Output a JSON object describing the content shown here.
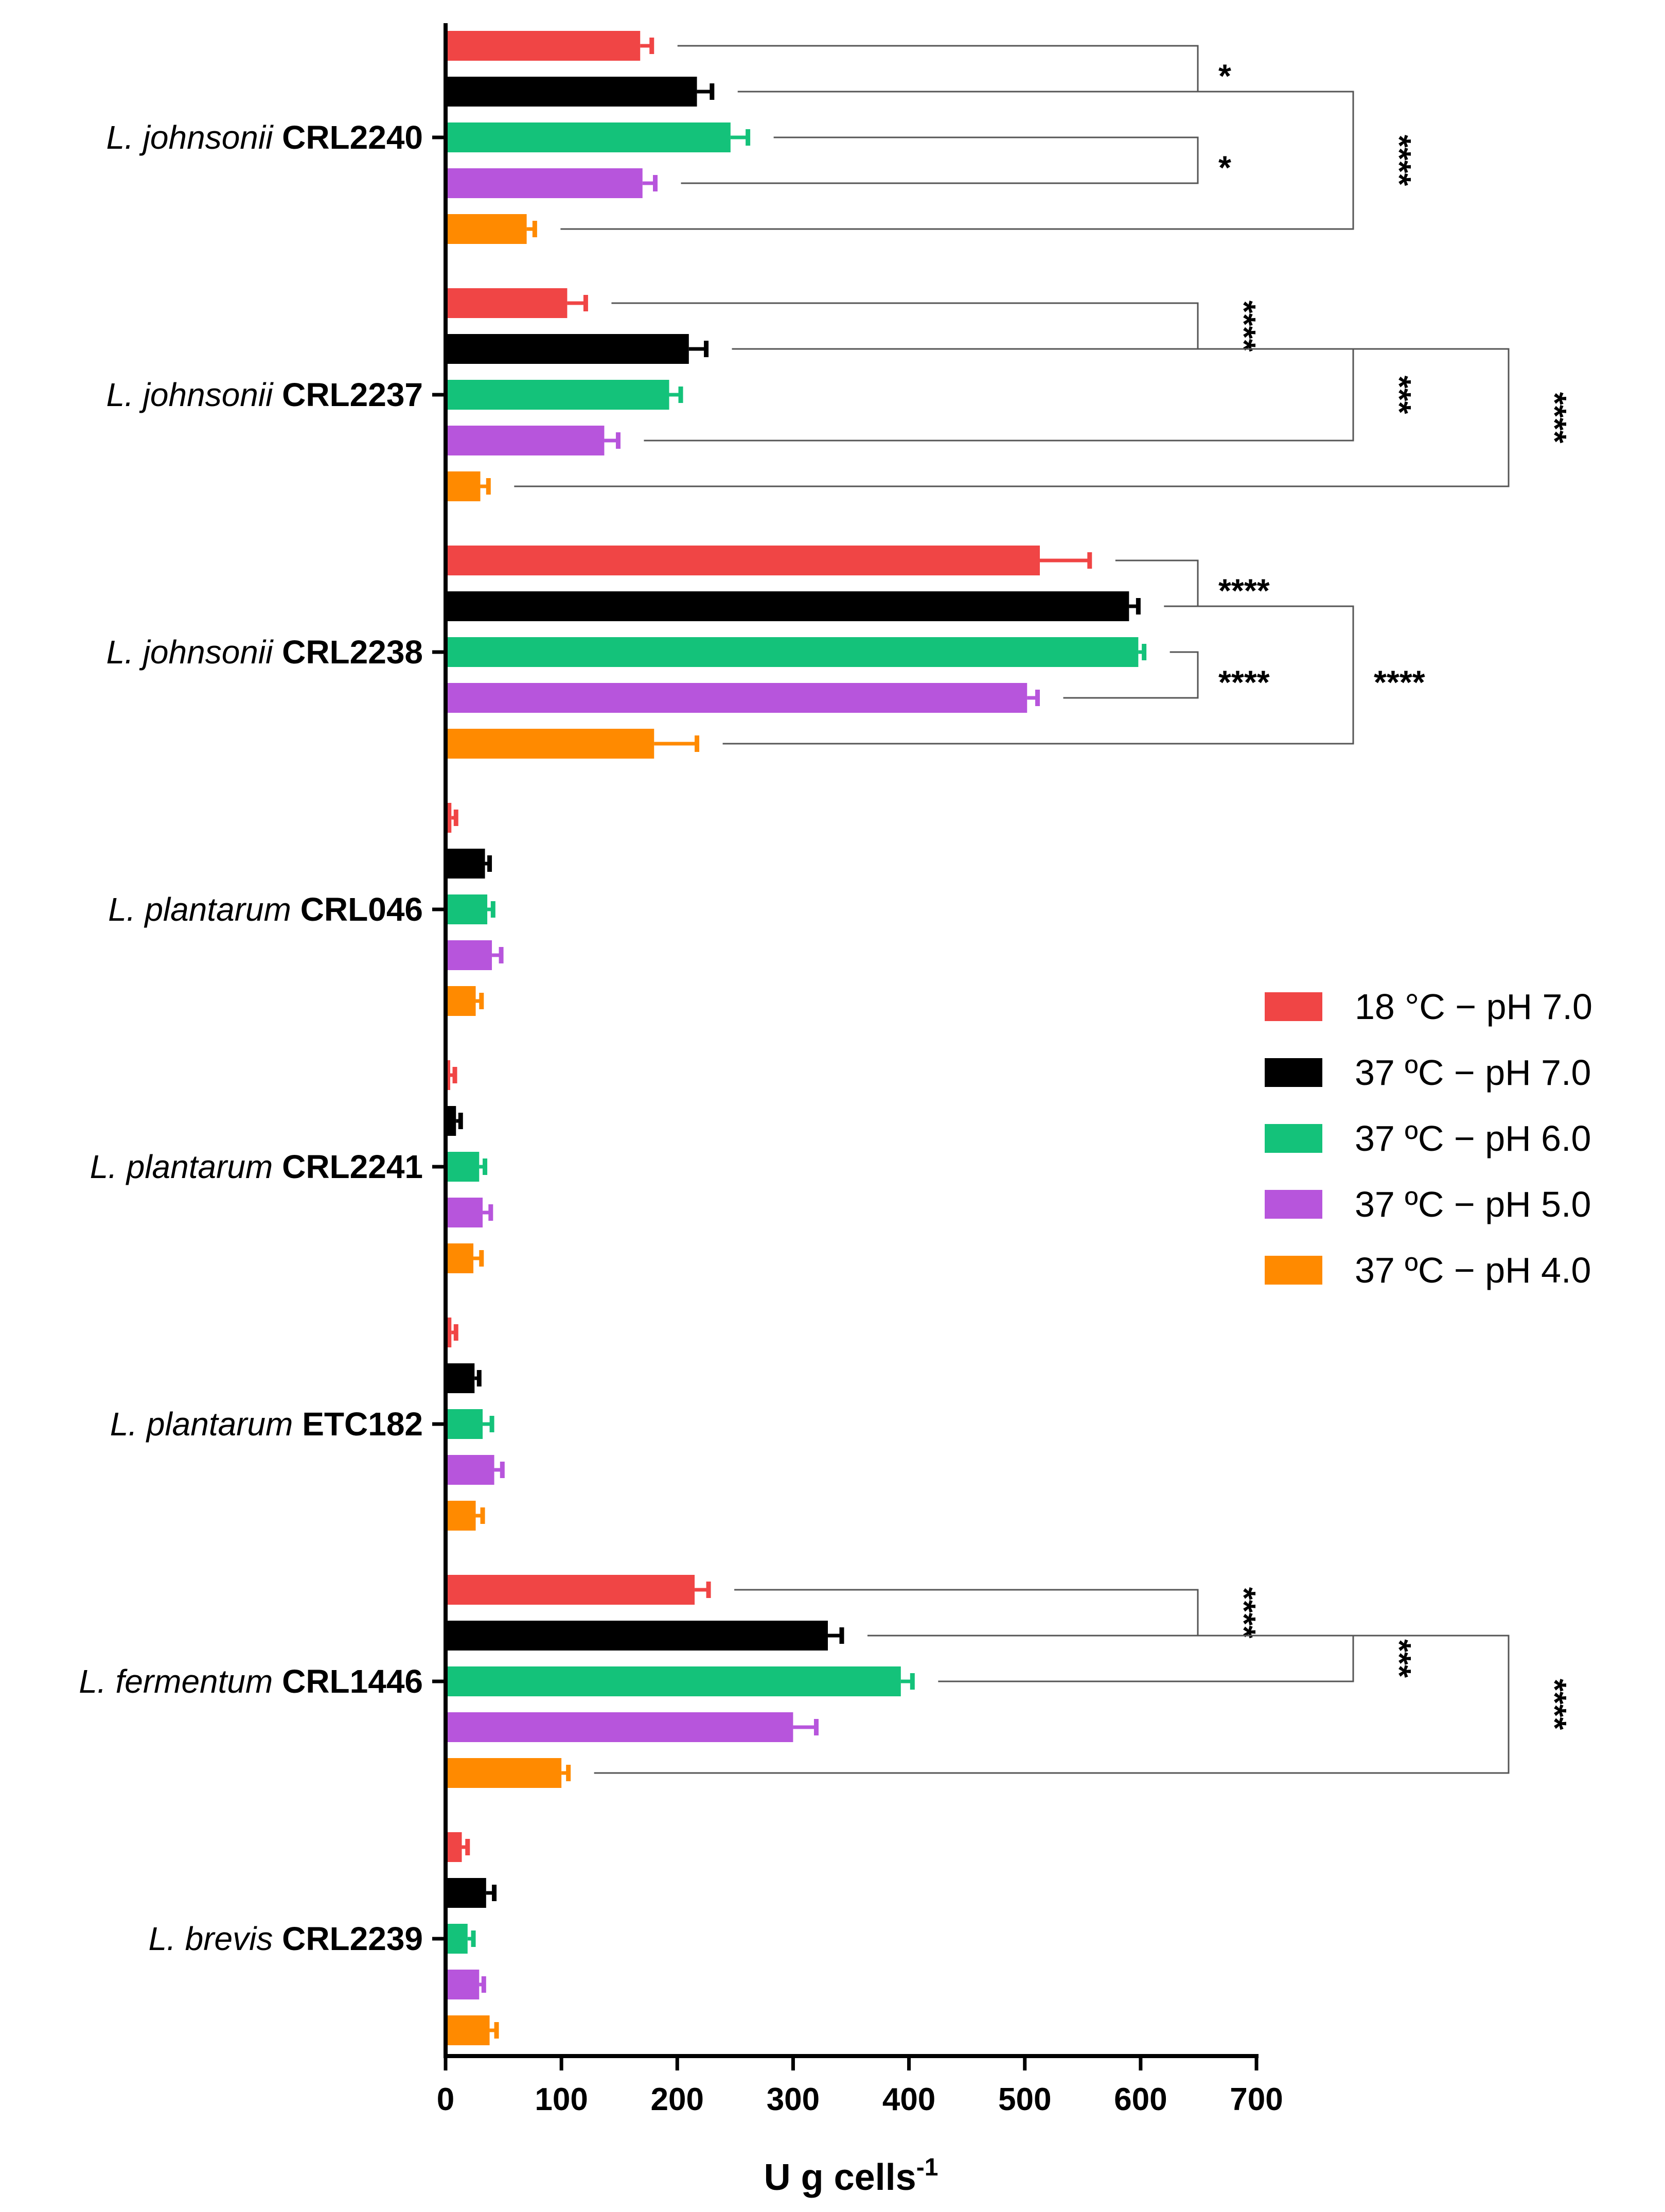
{
  "chart_data": {
    "type": "bar",
    "orientation": "horizontal",
    "title": "",
    "xlabel": "U g cells",
    "xlabel_superscript": "-1",
    "ylabel": "",
    "xlim": [
      0,
      700
    ],
    "xticks": [
      "0",
      "100",
      "200",
      "300",
      "400",
      "500",
      "600",
      "700"
    ],
    "categories": [
      {
        "species": "L. johnsonii",
        "strain": "CRL2240"
      },
      {
        "species": "L. johnsonii",
        "strain": "CRL2237"
      },
      {
        "species": "L. johnsonii",
        "strain": "CRL2238"
      },
      {
        "species": "L. plantarum",
        "strain": "CRL046"
      },
      {
        "species": "L. plantarum",
        "strain": "CRL2241"
      },
      {
        "species": "L. plantarum",
        "strain": "ETC182"
      },
      {
        "species": "L. fermentum",
        "strain": "CRL1446"
      },
      {
        "species": "L. brevis",
        "strain": "CRL2239"
      }
    ],
    "series": [
      {
        "name": "18 °C − pH 7.0",
        "color": "#f04545",
        "values": [
          168,
          105,
          513,
          5,
          4,
          5,
          215,
          14
        ],
        "errors": [
          10,
          16,
          43,
          4,
          4,
          4,
          12,
          5
        ]
      },
      {
        "name": "37 ºC − pH 7.0",
        "color": "#000000",
        "values": [
          217,
          210,
          590,
          34,
          9,
          25,
          330,
          35
        ],
        "errors": [
          13,
          15,
          8,
          4,
          4,
          4,
          12,
          7
        ]
      },
      {
        "name": "37 ºC − pH 6.0",
        "color": "#14c27a",
        "values": [
          246,
          193,
          598,
          36,
          29,
          32,
          393,
          19
        ],
        "errors": [
          15,
          10,
          5,
          5,
          5,
          8,
          10,
          5
        ]
      },
      {
        "name": "37 ºC − pH 5.0",
        "color": "#b755dc",
        "values": [
          170,
          137,
          502,
          40,
          32,
          42,
          300,
          29
        ],
        "errors": [
          11,
          12,
          9,
          8,
          7,
          7,
          20,
          4
        ]
      },
      {
        "name": "37 ºC − pH 4.0",
        "color": "#ff8a00",
        "values": [
          70,
          30,
          180,
          26,
          24,
          26,
          100,
          38
        ],
        "errors": [
          7,
          7,
          37,
          5,
          7,
          6,
          6,
          6
        ]
      }
    ],
    "significance": [
      {
        "label": "*",
        "category": 0,
        "pairs": [
          [
            0,
            1
          ]
        ],
        "level": 0
      },
      {
        "label": "*",
        "category": 0,
        "pairs": [
          [
            2,
            3
          ]
        ],
        "level": 0
      },
      {
        "label": "****",
        "category": 0,
        "pairs": [
          [
            1,
            4
          ]
        ],
        "level": 1,
        "vertical": true
      },
      {
        "label": "****",
        "category": 1,
        "pairs": [
          [
            0,
            1
          ]
        ],
        "level": 0,
        "vertical": true
      },
      {
        "label": "***",
        "category": 1,
        "pairs": [
          [
            1,
            3
          ]
        ],
        "level": 1,
        "vertical": true
      },
      {
        "label": "****",
        "category": 1,
        "pairs": [
          [
            1,
            4
          ]
        ],
        "level": 2,
        "vertical": true
      },
      {
        "label": "****",
        "category": 2,
        "pairs": [
          [
            0,
            1
          ]
        ],
        "level": 0
      },
      {
        "label": "****",
        "category": 2,
        "pairs": [
          [
            2,
            3
          ]
        ],
        "level": 0
      },
      {
        "label": "****",
        "category": 2,
        "pairs": [
          [
            1,
            4
          ]
        ],
        "level": 1
      },
      {
        "label": "****",
        "category": 6,
        "pairs": [
          [
            0,
            1
          ]
        ],
        "level": 0,
        "vertical": true
      },
      {
        "label": "***",
        "category": 6,
        "pairs": [
          [
            1,
            2
          ]
        ],
        "level": 1,
        "vertical": true
      },
      {
        "label": "****",
        "category": 6,
        "pairs": [
          [
            1,
            4
          ]
        ],
        "level": 2,
        "vertical": true
      }
    ],
    "legend_position": "right"
  }
}
